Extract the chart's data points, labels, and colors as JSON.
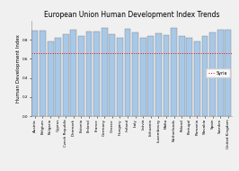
{
  "title": "European Union Human Development Index Trends",
  "ylabel": "Human Development Index",
  "categories": [
    "Austria",
    "Belgium",
    "Bulgaria",
    "Cyprus",
    "Czech Republic",
    "Denmark",
    "Estonia",
    "Finland",
    "France",
    "Germany",
    "Greece",
    "Hungary",
    "Ireland",
    "Italy",
    "Latvia",
    "Lithuania",
    "Luxembourg",
    "Malta",
    "Netherlands",
    "Poland",
    "Portugal",
    "Romania",
    "Slovakia",
    "Spain",
    "Sweden",
    "United Kingdom"
  ],
  "values": [
    0.893,
    0.896,
    0.782,
    0.818,
    0.861,
    0.9,
    0.84,
    0.882,
    0.884,
    0.92,
    0.853,
    0.818,
    0.916,
    0.873,
    0.819,
    0.834,
    0.867,
    0.847,
    0.921,
    0.834,
    0.816,
    0.785,
    0.834,
    0.873,
    0.907,
    0.907
  ],
  "bar_color": "#a8c8e8",
  "bar_edge_color": "#808080",
  "syria_line": 0.658,
  "syria_color": "red",
  "syria_linestyle": "dotted",
  "background_color": "#f0f0f0",
  "title_fontsize": 5.5,
  "axis_label_fontsize": 4.0,
  "tick_fontsize": 3.0,
  "ylim": [
    0,
    1.0
  ],
  "yticks": [
    0,
    0.2,
    0.4,
    0.6,
    0.8
  ],
  "legend_fontsize": 3.5
}
